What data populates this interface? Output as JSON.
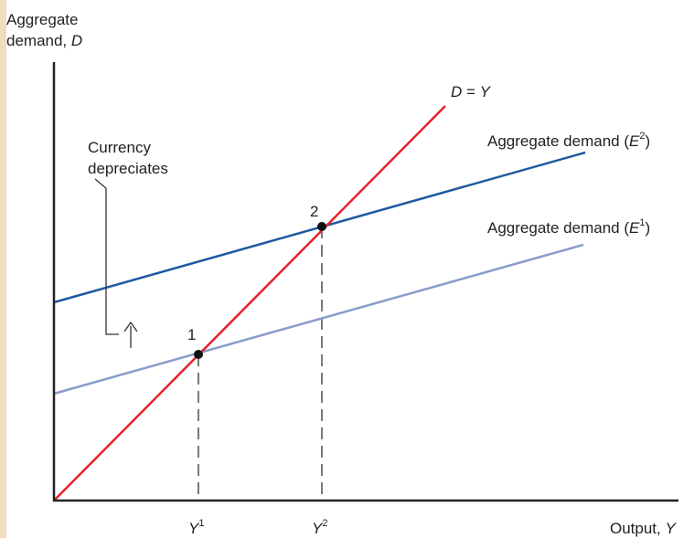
{
  "diagram": {
    "y_axis_title_line1": "Aggregate",
    "y_axis_title_line2_text": "demand, ",
    "y_axis_title_line2_var": "D",
    "x_axis_title_text": "Output, ",
    "x_axis_title_var": "Y",
    "line_45_label": {
      "var_left": "D",
      "eq": " = ",
      "var_right": "Y"
    },
    "curve_high_label": {
      "text": "Aggregate demand (",
      "var": "E",
      "sup": "2",
      "close": ")"
    },
    "curve_low_label": {
      "text": "Aggregate demand (",
      "var": "E",
      "sup": "1",
      "close": ")"
    },
    "annotation_line1": "Currency",
    "annotation_line2": "depreciates",
    "point1_label": "1",
    "point2_label": "2",
    "tick1": {
      "var": "Y",
      "sup": "1"
    },
    "tick2": {
      "var": "Y",
      "sup": "2"
    }
  },
  "colors": {
    "line_45": "#e8202a",
    "curve_high": "#1e5aa0",
    "curve_low": "#8a9ccc",
    "axis": "#222222",
    "left_strip": "#f2dcc0"
  }
}
